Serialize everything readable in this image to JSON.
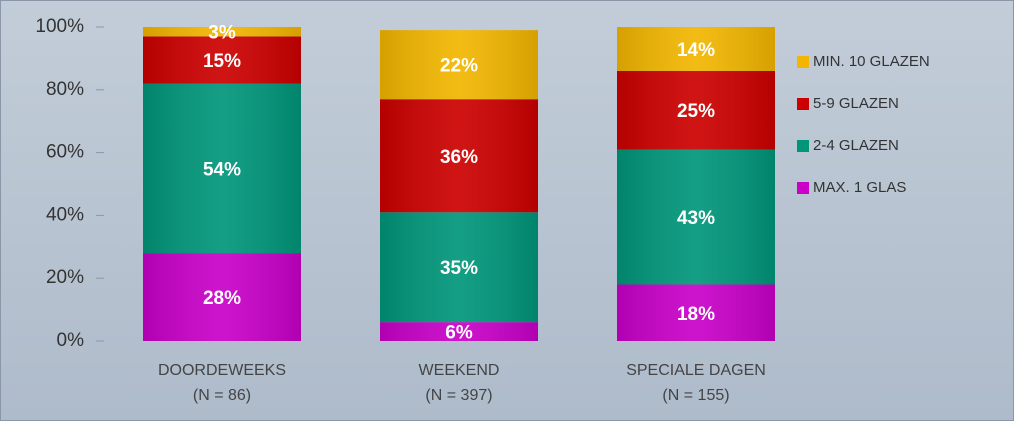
{
  "chart_data": {
    "type": "stacked_bar",
    "categories": [
      [
        "DOORDEWEEKS",
        "(N = 86)"
      ],
      [
        "WEEKEND",
        "(N = 397)"
      ],
      [
        "SPECIALE DAGEN",
        "(N = 155)"
      ]
    ],
    "series": [
      {
        "name": "MAX. 1 GLAS",
        "color": "#c800c8",
        "values": [
          28,
          6,
          18
        ],
        "value_labels": [
          "28%",
          "6%",
          "18%"
        ]
      },
      {
        "name": "2-4 GLAZEN",
        "color": "#00967a",
        "values": [
          54,
          35,
          43
        ],
        "value_labels": [
          "54%",
          "35%",
          "43%"
        ]
      },
      {
        "name": "5-9 GLAZEN",
        "color": "#cc0000",
        "values": [
          15,
          36,
          25
        ],
        "value_labels": [
          "15%",
          "36%",
          "25%"
        ]
      },
      {
        "name": "MIN. 10 GLAZEN",
        "color": "#f2b600",
        "values": [
          3,
          22,
          14
        ],
        "value_labels": [
          "3%",
          "22%",
          "14%"
        ]
      }
    ],
    "ylim": [
      0,
      100
    ],
    "yticks": [
      {
        "value": 0,
        "label": "0%"
      },
      {
        "value": 20,
        "label": "20%"
      },
      {
        "value": 40,
        "label": "40%"
      },
      {
        "value": 60,
        "label": "60%"
      },
      {
        "value": 80,
        "label": "80%"
      },
      {
        "value": 100,
        "label": "100%"
      }
    ],
    "grid": false,
    "legend": "right"
  }
}
